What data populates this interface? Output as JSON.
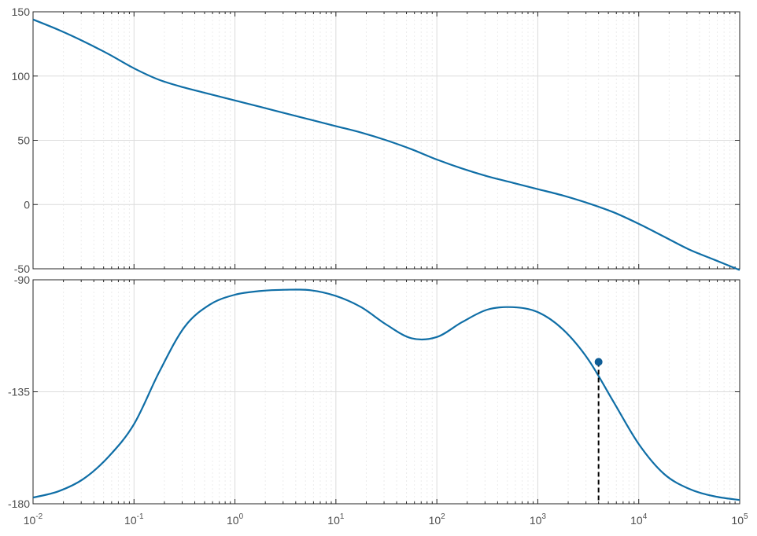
{
  "chart_data": [
    {
      "type": "line",
      "panel": "magnitude",
      "title": "",
      "xlabel": "",
      "ylabel": "",
      "xscale": "log",
      "xlim": [
        0.01,
        100000
      ],
      "ylim": [
        -50,
        150
      ],
      "yticks": [
        150,
        100,
        50,
        0,
        -50
      ],
      "ytick_labels": [
        "150",
        "100",
        "50",
        "0",
        "-50"
      ],
      "grid": true,
      "series": [
        {
          "color": "#0f6ea6",
          "x": [
            0.01,
            0.0178,
            0.0316,
            0.0562,
            0.1,
            0.178,
            0.316,
            0.562,
            1,
            1.78,
            3.16,
            5.62,
            10,
            17.8,
            31.6,
            56.2,
            100,
            178,
            316,
            562,
            1000,
            1780,
            3160,
            5620,
            10000,
            17800,
            31600,
            56200,
            100000
          ],
          "y": [
            144,
            136,
            127,
            117,
            106,
            97,
            91,
            86,
            81,
            76,
            71,
            66,
            61,
            56,
            50,
            43,
            35,
            28,
            22,
            17,
            12,
            7,
            1,
            -6,
            -15,
            -25,
            -35,
            -43,
            -51
          ]
        }
      ]
    },
    {
      "type": "line",
      "panel": "phase",
      "title": "",
      "xlabel": "",
      "ylabel": "",
      "xscale": "log",
      "xlim": [
        0.01,
        100000
      ],
      "ylim": [
        -180,
        -90
      ],
      "yticks": [
        -90,
        -135,
        -180
      ],
      "ytick_labels": [
        "-90",
        "-135",
        "-180"
      ],
      "xticks": [
        0.01,
        0.1,
        1,
        10,
        100,
        1000,
        10000,
        100000
      ],
      "xtick_labels": [
        {
          "base": "10",
          "exp": "-2"
        },
        {
          "base": "10",
          "exp": "-1"
        },
        {
          "base": "10",
          "exp": "0"
        },
        {
          "base": "10",
          "exp": "1"
        },
        {
          "base": "10",
          "exp": "2"
        },
        {
          "base": "10",
          "exp": "3"
        },
        {
          "base": "10",
          "exp": "4"
        },
        {
          "base": "10",
          "exp": "5"
        }
      ],
      "grid": true,
      "series": [
        {
          "color": "#0f6ea6",
          "x": [
            0.01,
            0.0178,
            0.0316,
            0.0562,
            0.1,
            0.178,
            0.316,
            0.562,
            1,
            1.78,
            3.16,
            5.62,
            10,
            17.8,
            31.6,
            56.2,
            100,
            178,
            316,
            562,
            1000,
            1780,
            3160,
            5620,
            10000,
            17800,
            31600,
            56200,
            100000
          ],
          "y": [
            -177.5,
            -175,
            -170,
            -161,
            -148,
            -127,
            -109,
            -100,
            -96,
            -94.5,
            -94,
            -94.2,
            -96.5,
            -101,
            -108,
            -113.5,
            -113,
            -107,
            -102,
            -101,
            -103,
            -110,
            -122,
            -139,
            -156,
            -168,
            -174,
            -177,
            -178.5
          ]
        }
      ],
      "annotations": [
        {
          "type": "marker",
          "x": 4000,
          "y": -123,
          "drop_line": "dashed",
          "color": "#000000"
        }
      ]
    }
  ]
}
